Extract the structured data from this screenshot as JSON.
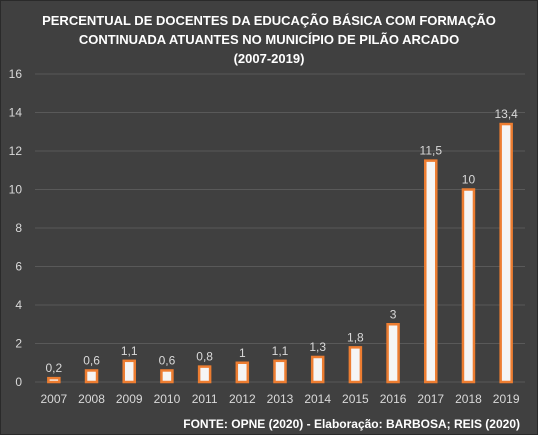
{
  "title_lines": [
    "PERCENTUAL DE DOCENTES DA EDUCAÇÃO BÁSICA  COM FORMAÇÃO",
    "CONTINUADA ATUANTES NO MUNICÍPIO DE PILÃO ARCADO",
    "(2007-2019)"
  ],
  "source": "FONTE: OPNE (2020) - Elaboração: BARBOSA; REIS (2020)",
  "colors": {
    "background": "#404040",
    "bar_fill": "#f5f5f5",
    "bar_outline": "#ed7d31",
    "gridline": "#595959",
    "text": "#d9d9d9"
  },
  "chart_data": {
    "type": "bar",
    "categories": [
      "2007",
      "2008",
      "2009",
      "2010",
      "2011",
      "2012",
      "2013",
      "2014",
      "2015",
      "2016",
      "2017",
      "2018",
      "2019"
    ],
    "values": [
      0.2,
      0.6,
      1.1,
      0.6,
      0.8,
      1,
      1.1,
      1.3,
      1.8,
      3,
      11.5,
      10,
      13.4
    ],
    "data_labels": [
      "0,2",
      "0,6",
      "1,1",
      "0,6",
      "0,8",
      "1",
      "1,1",
      "1,3",
      "1,8",
      "3",
      "11,5",
      "10",
      "13,4"
    ],
    "y_ticks": [
      "0",
      "2",
      "4",
      "6",
      "8",
      "10",
      "12",
      "14",
      "16"
    ],
    "ylim": [
      0,
      16
    ],
    "grid": true,
    "legend": "none"
  }
}
